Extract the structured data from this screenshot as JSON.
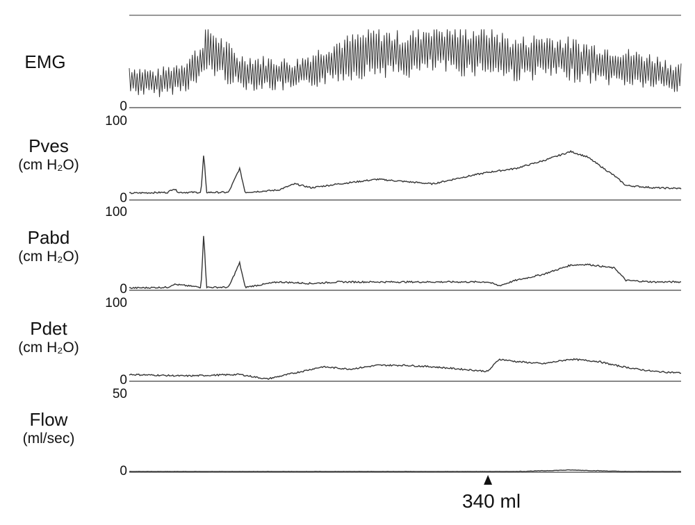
{
  "chart_data": {
    "type": "line",
    "title": "",
    "channels": [
      {
        "name": "EMG",
        "unit": "",
        "ymin_label": "0",
        "ymax_label": "",
        "x": [
          0,
          0.05,
          0.1,
          0.13,
          0.14,
          0.2,
          0.3,
          0.38,
          0.45,
          0.5,
          0.55,
          0.6,
          0.65,
          0.7,
          0.75,
          0.8,
          0.85,
          0.9,
          0.95,
          1.0
        ],
        "values": [
          35,
          30,
          40,
          55,
          75,
          45,
          40,
          60,
          70,
          65,
          75,
          70,
          72,
          60,
          65,
          60,
          55,
          50,
          45,
          35
        ]
      },
      {
        "name": "Pves",
        "unit": "(cm H₂O)",
        "ymin_label": "0",
        "ymax_label": "100",
        "x": [
          0,
          0.07,
          0.08,
          0.09,
          0.13,
          0.135,
          0.14,
          0.18,
          0.2,
          0.21,
          0.27,
          0.3,
          0.33,
          0.38,
          0.45,
          0.5,
          0.55,
          0.6,
          0.65,
          0.7,
          0.75,
          0.8,
          0.83,
          0.88,
          0.9,
          0.95,
          1.0
        ],
        "values": [
          8,
          9,
          14,
          9,
          9,
          60,
          9,
          9,
          40,
          9,
          12,
          20,
          15,
          20,
          26,
          23,
          20,
          28,
          35,
          40,
          50,
          62,
          55,
          30,
          18,
          15,
          14
        ]
      },
      {
        "name": "Pabd",
        "unit": "(cm H₂O)",
        "ymin_label": "0",
        "ymax_label": "100",
        "x": [
          0,
          0.07,
          0.08,
          0.13,
          0.135,
          0.14,
          0.18,
          0.2,
          0.21,
          0.27,
          0.33,
          0.38,
          0.45,
          0.55,
          0.65,
          0.67,
          0.7,
          0.75,
          0.8,
          0.83,
          0.88,
          0.9,
          0.95,
          1.0
        ],
        "values": [
          2,
          3,
          7,
          3,
          75,
          3,
          3,
          35,
          3,
          10,
          8,
          10,
          10,
          10,
          10,
          5,
          12,
          20,
          32,
          33,
          28,
          12,
          10,
          10
        ]
      },
      {
        "name": "Pdet",
        "unit": "(cm H₂O)",
        "ymin_label": "0",
        "ymax_label": "100",
        "x": [
          0,
          0.1,
          0.2,
          0.25,
          0.3,
          0.35,
          0.4,
          0.45,
          0.5,
          0.55,
          0.6,
          0.65,
          0.67,
          0.7,
          0.75,
          0.8,
          0.85,
          0.88,
          0.92,
          0.95,
          1.0
        ],
        "values": [
          8,
          6,
          8,
          2,
          10,
          18,
          15,
          20,
          20,
          18,
          15,
          12,
          28,
          25,
          22,
          28,
          25,
          20,
          15,
          12,
          10
        ]
      },
      {
        "name": "Flow",
        "unit": "(ml/sec)",
        "ymin_label": "0",
        "ymax_label": "50",
        "x": [
          0,
          0.1,
          0.2,
          0.3,
          0.4,
          0.5,
          0.6,
          0.7,
          0.75,
          0.8,
          0.85,
          0.9,
          1.0
        ],
        "values": [
          0,
          0,
          0,
          0,
          0,
          0,
          0,
          0,
          0.5,
          1,
          0.5,
          0,
          0
        ]
      }
    ],
    "annotation": {
      "text": "340 ml",
      "x": 0.65
    },
    "grid": false,
    "legend": "none"
  }
}
